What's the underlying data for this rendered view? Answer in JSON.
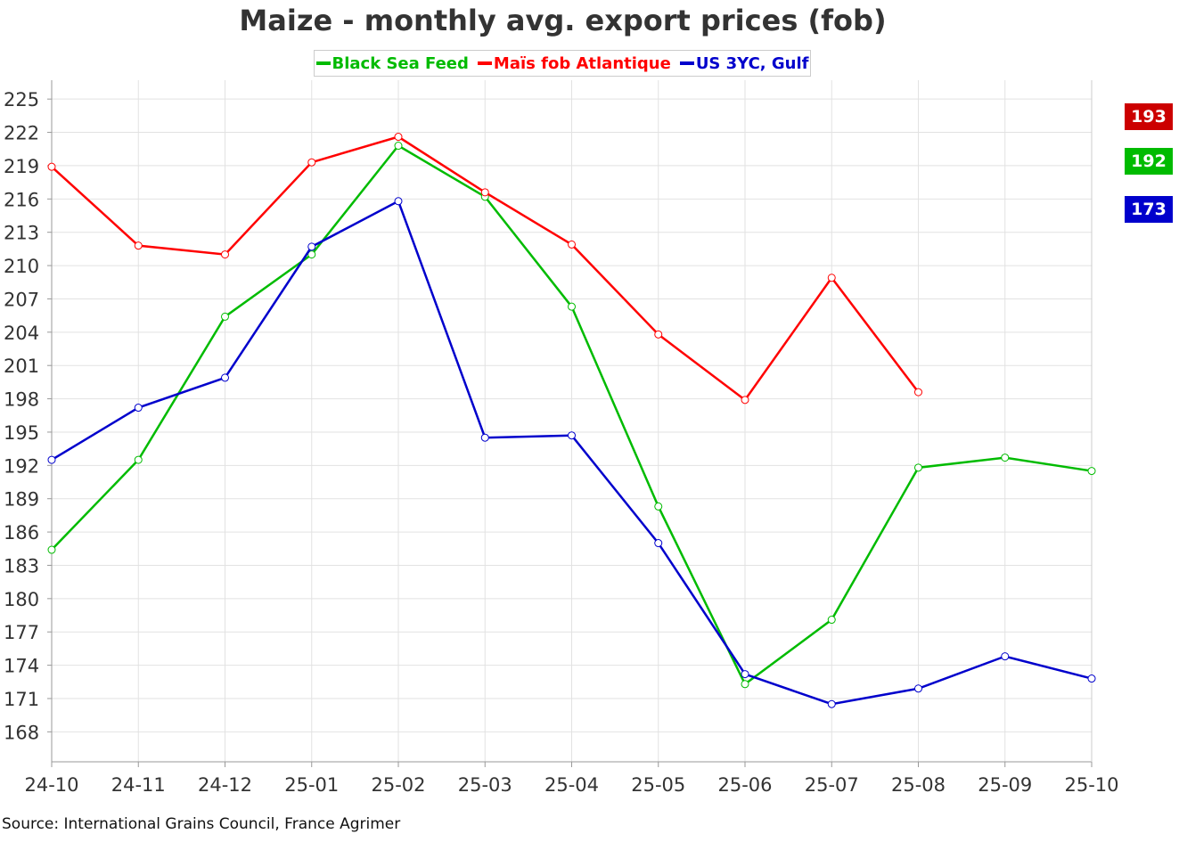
{
  "chart_data": {
    "type": "line",
    "title": "Maize - monthly avg. export prices (fob)",
    "xlabel": "",
    "ylabel": "",
    "ylim": [
      165.3,
      226.7
    ],
    "yticks": [
      168,
      171,
      174,
      177,
      180,
      183,
      186,
      189,
      192,
      195,
      198,
      201,
      204,
      207,
      210,
      213,
      216,
      219,
      222,
      225
    ],
    "categories": [
      "24-10",
      "24-11",
      "24-12",
      "25-01",
      "25-02",
      "25-03",
      "25-04",
      "25-05",
      "25-06",
      "25-07",
      "25-08",
      "25-09",
      "25-10"
    ],
    "grid": true,
    "legend_position": "top-center",
    "series": [
      {
        "name": "Black Sea Feed",
        "color": "#00bb00",
        "values": [
          184.4,
          192.5,
          205.4,
          211.0,
          220.8,
          216.2,
          206.3,
          188.3,
          172.3,
          178.1,
          191.8,
          192.7,
          191.5
        ]
      },
      {
        "name": "Maïs fob Atlantique",
        "color": "#ff0000",
        "values": [
          218.9,
          211.8,
          211.0,
          219.3,
          221.6,
          216.6,
          211.9,
          203.8,
          197.9,
          208.9,
          198.6,
          null,
          null
        ]
      },
      {
        "name": "US 3YC, Gulf",
        "color": "#0000cc",
        "values": [
          192.5,
          197.2,
          199.9,
          211.7,
          215.8,
          194.5,
          194.7,
          185.0,
          173.2,
          170.5,
          171.9,
          174.8,
          172.8
        ]
      }
    ],
    "badges": [
      {
        "label": "193",
        "color": "#cc0000"
      },
      {
        "label": "192",
        "color": "#00bb00"
      },
      {
        "label": "173",
        "color": "#0000cc"
      }
    ],
    "source": "Source: International Grains Council, France Agrimer"
  }
}
